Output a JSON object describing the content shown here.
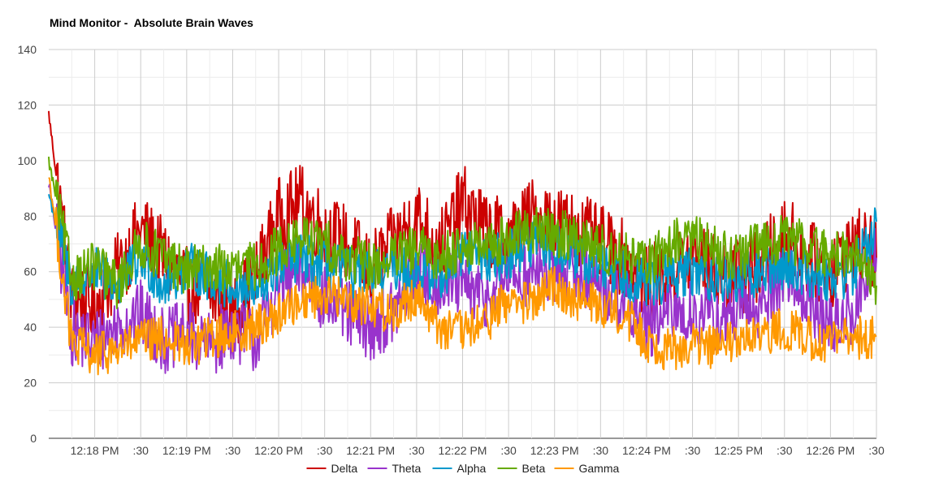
{
  "chart_data": {
    "type": "line",
    "title": "Mind Monitor -  Absolute Brain Waves",
    "xlabel": "",
    "ylabel": "",
    "ylim": [
      0,
      140
    ],
    "y_ticks": [
      0,
      20,
      40,
      60,
      80,
      100,
      120,
      140
    ],
    "x_range": [
      "12:17:30 PM",
      "12:26:30 PM"
    ],
    "x_ticks": [
      "12:18 PM",
      ":30",
      "12:19 PM",
      ":30",
      "12:20 PM",
      ":30",
      "12:21 PM",
      ":30",
      "12:22 PM",
      ":30",
      "12:23 PM",
      ":30",
      "12:24 PM",
      ":30",
      "12:25 PM",
      ":30",
      "12:26 PM",
      ":30"
    ],
    "grid": true,
    "legend_position": "bottom",
    "x_time_seconds_note_free": true,
    "x": [
      "12:17:30",
      "12:17:45",
      "12:18:00",
      "12:18:15",
      "12:18:30",
      "12:18:45",
      "12:19:00",
      "12:19:15",
      "12:19:30",
      "12:19:45",
      "12:20:00",
      "12:20:15",
      "12:20:30",
      "12:20:45",
      "12:21:00",
      "12:21:15",
      "12:21:30",
      "12:21:45",
      "12:22:00",
      "12:22:15",
      "12:22:30",
      "12:22:45",
      "12:23:00",
      "12:23:15",
      "12:23:30",
      "12:23:45",
      "12:24:00",
      "12:24:15",
      "12:24:30",
      "12:24:45",
      "12:25:00",
      "12:25:15",
      "12:25:30",
      "12:25:45",
      "12:26:00",
      "12:26:15",
      "12:26:30"
    ],
    "series": [
      {
        "name": "Delta",
        "color": "#cc0000",
        "values": [
          117,
          50,
          48,
          60,
          75,
          65,
          55,
          52,
          45,
          58,
          80,
          85,
          75,
          70,
          60,
          70,
          80,
          68,
          85,
          75,
          72,
          80,
          78,
          75,
          70,
          65,
          55,
          60,
          65,
          60,
          58,
          62,
          75,
          65,
          60,
          70,
          65
        ]
      },
      {
        "name": "Theta",
        "color": "#9933cc",
        "values": [
          92,
          38,
          35,
          40,
          45,
          35,
          38,
          33,
          40,
          35,
          55,
          60,
          50,
          45,
          40,
          45,
          60,
          55,
          55,
          50,
          60,
          58,
          60,
          60,
          55,
          50,
          40,
          45,
          45,
          42,
          45,
          48,
          60,
          50,
          40,
          45,
          65
        ]
      },
      {
        "name": "Alpha",
        "color": "#0099cc",
        "values": [
          88,
          55,
          60,
          55,
          65,
          55,
          62,
          58,
          55,
          52,
          62,
          65,
          62,
          60,
          58,
          62,
          60,
          58,
          68,
          65,
          66,
          70,
          68,
          65,
          62,
          60,
          55,
          58,
          60,
          58,
          57,
          60,
          62,
          60,
          58,
          60,
          78
        ]
      },
      {
        "name": "Beta",
        "color": "#66aa00",
        "values": [
          100,
          58,
          62,
          55,
          70,
          65,
          60,
          62,
          60,
          62,
          68,
          72,
          70,
          65,
          62,
          65,
          68,
          65,
          70,
          68,
          72,
          75,
          74,
          72,
          68,
          66,
          62,
          70,
          72,
          68,
          65,
          70,
          72,
          70,
          65,
          68,
          55
        ]
      },
      {
        "name": "Gamma",
        "color": "#ff9900",
        "values": [
          95,
          34,
          30,
          32,
          35,
          36,
          33,
          36,
          38,
          40,
          45,
          50,
          52,
          50,
          48,
          45,
          52,
          40,
          38,
          42,
          50,
          48,
          55,
          50,
          48,
          45,
          35,
          32,
          34,
          33,
          35,
          36,
          40,
          36,
          35,
          36,
          37
        ]
      }
    ]
  }
}
